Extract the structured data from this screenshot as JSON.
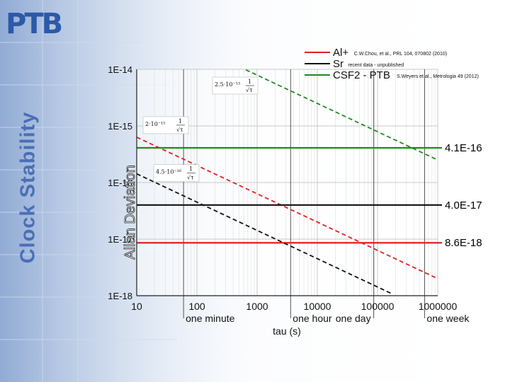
{
  "header": {
    "logo": "PTB",
    "side_title": "Clock Stability"
  },
  "chart_data": {
    "type": "line",
    "x_scale": "log",
    "y_scale": "log",
    "xlim": [
      10,
      1000000
    ],
    "ylim": [
      1e-18,
      1e-14
    ],
    "x_ticks": [
      10,
      100,
      1000,
      10000,
      100000,
      1000000
    ],
    "x_tick_labels": [
      "10",
      "100",
      "1000",
      "10000",
      "100000",
      "1000000"
    ],
    "y_ticks": [
      1e-14,
      1e-15,
      1e-16,
      1e-17,
      1e-18
    ],
    "y_tick_labels": [
      "1E-14",
      "1E-15",
      "1E-16",
      "1E-17",
      "1E-18"
    ],
    "xlabel": "tau (s)",
    "ylabel": "Allan Deviation",
    "x_markers": [
      {
        "x": 60,
        "label": "one minute"
      },
      {
        "x": 3600,
        "label": "one hour"
      },
      {
        "x": 86400,
        "label": "one day"
      },
      {
        "x": 604800,
        "label": "one week"
      }
    ],
    "grid": true,
    "legend_position": "top-right",
    "series": [
      {
        "name": "Al+",
        "note": "C.W.Chou, et al., PRL 104, 070802 (2010)",
        "color": "#e02020",
        "coef": 2e-15,
        "floor": 8.6e-18,
        "floor_label": "8.6E-18",
        "annotation": "2·10⁻¹⁵"
      },
      {
        "name": "Sr",
        "note": "recent data - unpublished",
        "color": "#111111",
        "coef": 4.5e-16,
        "floor": 4e-17,
        "floor_label": "4.0E-17",
        "annotation": "4.5·10⁻¹⁶"
      },
      {
        "name": "CSF2 - PTB",
        "note": "S.Weyers et al., Metrologia 49 (2012)",
        "color": "#1f8a1f",
        "coef": 2.5e-13,
        "floor": 4.1e-16,
        "floor_label": "4.1E-16",
        "annotation": "2.5·10⁻¹³"
      }
    ]
  },
  "colors": {
    "logo": "#2b5aa8",
    "side_title": "#4a6fb5"
  }
}
